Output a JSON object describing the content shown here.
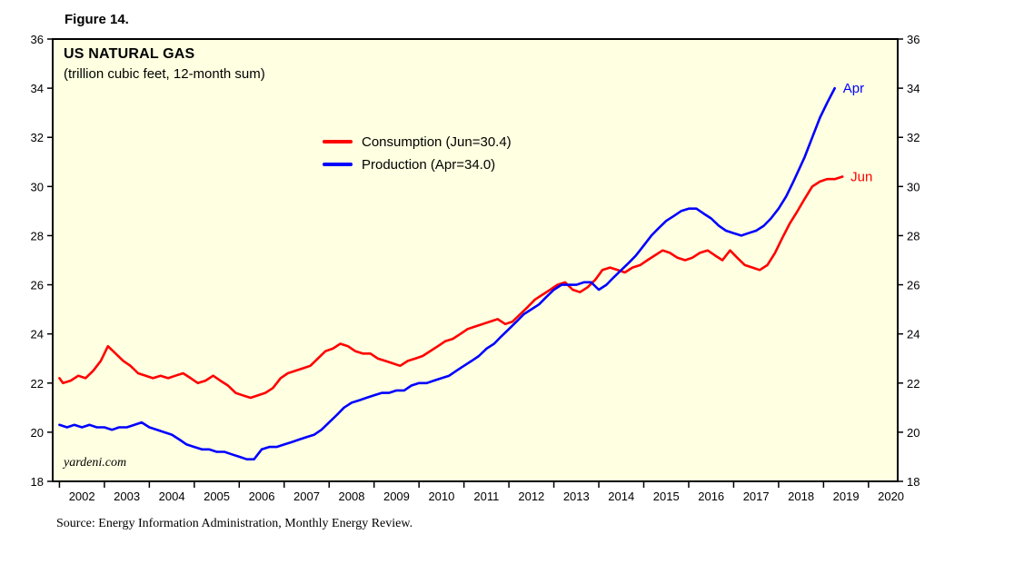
{
  "figure": {
    "label": "Figure 14."
  },
  "chart": {
    "title": "US NATURAL GAS",
    "subtitle": "(trillion cubic feet, 12-month sum)"
  },
  "legend": [
    {
      "label": "Consumption (Jun=30.4)",
      "color": "#FF0000"
    },
    {
      "label": "Production (Apr=34.0)",
      "color": "#0000FF"
    }
  ],
  "watermark": {
    "text": "yardeni.com"
  },
  "footer": {
    "source": "Source: Energy Information Administration, Monthly Energy Review."
  },
  "colors": {
    "plot_bg": "#FFFFE1",
    "frame": "#000000",
    "consumption": "#FF0000",
    "production": "#0000FF"
  },
  "chart_data": {
    "type": "line",
    "title": "US NATURAL GAS",
    "subtitle": "(trillion cubic feet, 12-month sum)",
    "xlabel": "",
    "ylabel": "trillion cubic feet (12-month sum)",
    "ylim": [
      18,
      36
    ],
    "ytick_step": 2,
    "xlim": [
      2001.85,
      2020.65
    ],
    "xticks_years": [
      2002,
      2003,
      2004,
      2005,
      2006,
      2007,
      2008,
      2009,
      2010,
      2011,
      2012,
      2013,
      2014,
      2015,
      2016,
      2017,
      2018,
      2019,
      2020
    ],
    "grid": false,
    "legend_position": "upper-center-left",
    "series": [
      {
        "name": "Consumption (Jun=30.4)",
        "color": "#FF0000",
        "end_label": "Jun",
        "points": [
          [
            2002.0,
            22.2
          ],
          [
            2002.08,
            22.0
          ],
          [
            2002.25,
            22.1
          ],
          [
            2002.42,
            22.3
          ],
          [
            2002.58,
            22.2
          ],
          [
            2002.75,
            22.5
          ],
          [
            2002.92,
            22.9
          ],
          [
            2003.08,
            23.5
          ],
          [
            2003.25,
            23.2
          ],
          [
            2003.42,
            22.9
          ],
          [
            2003.58,
            22.7
          ],
          [
            2003.75,
            22.4
          ],
          [
            2003.92,
            22.3
          ],
          [
            2004.08,
            22.2
          ],
          [
            2004.25,
            22.3
          ],
          [
            2004.42,
            22.2
          ],
          [
            2004.58,
            22.3
          ],
          [
            2004.75,
            22.4
          ],
          [
            2004.92,
            22.2
          ],
          [
            2005.08,
            22.0
          ],
          [
            2005.25,
            22.1
          ],
          [
            2005.42,
            22.3
          ],
          [
            2005.58,
            22.1
          ],
          [
            2005.75,
            21.9
          ],
          [
            2005.92,
            21.6
          ],
          [
            2006.08,
            21.5
          ],
          [
            2006.25,
            21.4
          ],
          [
            2006.42,
            21.5
          ],
          [
            2006.58,
            21.6
          ],
          [
            2006.75,
            21.8
          ],
          [
            2006.92,
            22.2
          ],
          [
            2007.08,
            22.4
          ],
          [
            2007.25,
            22.5
          ],
          [
            2007.42,
            22.6
          ],
          [
            2007.58,
            22.7
          ],
          [
            2007.75,
            23.0
          ],
          [
            2007.92,
            23.3
          ],
          [
            2008.08,
            23.4
          ],
          [
            2008.25,
            23.6
          ],
          [
            2008.42,
            23.5
          ],
          [
            2008.58,
            23.3
          ],
          [
            2008.75,
            23.2
          ],
          [
            2008.92,
            23.2
          ],
          [
            2009.08,
            23.0
          ],
          [
            2009.25,
            22.9
          ],
          [
            2009.42,
            22.8
          ],
          [
            2009.58,
            22.7
          ],
          [
            2009.75,
            22.9
          ],
          [
            2009.92,
            23.0
          ],
          [
            2010.08,
            23.1
          ],
          [
            2010.25,
            23.3
          ],
          [
            2010.42,
            23.5
          ],
          [
            2010.58,
            23.7
          ],
          [
            2010.75,
            23.8
          ],
          [
            2010.92,
            24.0
          ],
          [
            2011.08,
            24.2
          ],
          [
            2011.25,
            24.3
          ],
          [
            2011.42,
            24.4
          ],
          [
            2011.58,
            24.5
          ],
          [
            2011.75,
            24.6
          ],
          [
            2011.92,
            24.4
          ],
          [
            2012.08,
            24.5
          ],
          [
            2012.25,
            24.8
          ],
          [
            2012.42,
            25.1
          ],
          [
            2012.58,
            25.4
          ],
          [
            2012.75,
            25.6
          ],
          [
            2012.92,
            25.8
          ],
          [
            2013.08,
            26.0
          ],
          [
            2013.25,
            26.1
          ],
          [
            2013.42,
            25.8
          ],
          [
            2013.58,
            25.7
          ],
          [
            2013.75,
            25.9
          ],
          [
            2013.92,
            26.2
          ],
          [
            2014.08,
            26.6
          ],
          [
            2014.25,
            26.7
          ],
          [
            2014.42,
            26.6
          ],
          [
            2014.58,
            26.5
          ],
          [
            2014.75,
            26.7
          ],
          [
            2014.92,
            26.8
          ],
          [
            2015.08,
            27.0
          ],
          [
            2015.25,
            27.2
          ],
          [
            2015.42,
            27.4
          ],
          [
            2015.58,
            27.3
          ],
          [
            2015.75,
            27.1
          ],
          [
            2015.92,
            27.0
          ],
          [
            2016.08,
            27.1
          ],
          [
            2016.25,
            27.3
          ],
          [
            2016.42,
            27.4
          ],
          [
            2016.58,
            27.2
          ],
          [
            2016.75,
            27.0
          ],
          [
            2016.92,
            27.4
          ],
          [
            2017.08,
            27.1
          ],
          [
            2017.25,
            26.8
          ],
          [
            2017.42,
            26.7
          ],
          [
            2017.58,
            26.6
          ],
          [
            2017.75,
            26.8
          ],
          [
            2017.92,
            27.3
          ],
          [
            2018.08,
            27.9
          ],
          [
            2018.25,
            28.5
          ],
          [
            2018.42,
            29.0
          ],
          [
            2018.58,
            29.5
          ],
          [
            2018.75,
            30.0
          ],
          [
            2018.92,
            30.2
          ],
          [
            2019.08,
            30.3
          ],
          [
            2019.25,
            30.3
          ],
          [
            2019.42,
            30.4
          ]
        ]
      },
      {
        "name": "Production (Apr=34.0)",
        "color": "#0000FF",
        "end_label": "Apr",
        "points": [
          [
            2002.0,
            20.3
          ],
          [
            2002.17,
            20.2
          ],
          [
            2002.33,
            20.3
          ],
          [
            2002.5,
            20.2
          ],
          [
            2002.67,
            20.3
          ],
          [
            2002.83,
            20.2
          ],
          [
            2003.0,
            20.2
          ],
          [
            2003.17,
            20.1
          ],
          [
            2003.33,
            20.2
          ],
          [
            2003.5,
            20.2
          ],
          [
            2003.67,
            20.3
          ],
          [
            2003.83,
            20.4
          ],
          [
            2004.0,
            20.2
          ],
          [
            2004.17,
            20.1
          ],
          [
            2004.33,
            20.0
          ],
          [
            2004.5,
            19.9
          ],
          [
            2004.67,
            19.7
          ],
          [
            2004.83,
            19.5
          ],
          [
            2005.0,
            19.4
          ],
          [
            2005.17,
            19.3
          ],
          [
            2005.33,
            19.3
          ],
          [
            2005.5,
            19.2
          ],
          [
            2005.67,
            19.2
          ],
          [
            2005.83,
            19.1
          ],
          [
            2006.0,
            19.0
          ],
          [
            2006.17,
            18.9
          ],
          [
            2006.33,
            18.9
          ],
          [
            2006.5,
            19.3
          ],
          [
            2006.67,
            19.4
          ],
          [
            2006.83,
            19.4
          ],
          [
            2007.0,
            19.5
          ],
          [
            2007.17,
            19.6
          ],
          [
            2007.33,
            19.7
          ],
          [
            2007.5,
            19.8
          ],
          [
            2007.67,
            19.9
          ],
          [
            2007.83,
            20.1
          ],
          [
            2008.0,
            20.4
          ],
          [
            2008.17,
            20.7
          ],
          [
            2008.33,
            21.0
          ],
          [
            2008.5,
            21.2
          ],
          [
            2008.67,
            21.3
          ],
          [
            2008.83,
            21.4
          ],
          [
            2009.0,
            21.5
          ],
          [
            2009.17,
            21.6
          ],
          [
            2009.33,
            21.6
          ],
          [
            2009.5,
            21.7
          ],
          [
            2009.67,
            21.7
          ],
          [
            2009.83,
            21.9
          ],
          [
            2010.0,
            22.0
          ],
          [
            2010.17,
            22.0
          ],
          [
            2010.33,
            22.1
          ],
          [
            2010.5,
            22.2
          ],
          [
            2010.67,
            22.3
          ],
          [
            2010.83,
            22.5
          ],
          [
            2011.0,
            22.7
          ],
          [
            2011.17,
            22.9
          ],
          [
            2011.33,
            23.1
          ],
          [
            2011.5,
            23.4
          ],
          [
            2011.67,
            23.6
          ],
          [
            2011.83,
            23.9
          ],
          [
            2012.0,
            24.2
          ],
          [
            2012.17,
            24.5
          ],
          [
            2012.33,
            24.8
          ],
          [
            2012.5,
            25.0
          ],
          [
            2012.67,
            25.2
          ],
          [
            2012.83,
            25.5
          ],
          [
            2013.0,
            25.8
          ],
          [
            2013.17,
            26.0
          ],
          [
            2013.33,
            26.0
          ],
          [
            2013.5,
            26.0
          ],
          [
            2013.67,
            26.1
          ],
          [
            2013.83,
            26.1
          ],
          [
            2014.0,
            25.8
          ],
          [
            2014.17,
            26.0
          ],
          [
            2014.33,
            26.3
          ],
          [
            2014.5,
            26.6
          ],
          [
            2014.67,
            26.9
          ],
          [
            2014.83,
            27.2
          ],
          [
            2015.0,
            27.6
          ],
          [
            2015.17,
            28.0
          ],
          [
            2015.33,
            28.3
          ],
          [
            2015.5,
            28.6
          ],
          [
            2015.67,
            28.8
          ],
          [
            2015.83,
            29.0
          ],
          [
            2016.0,
            29.1
          ],
          [
            2016.17,
            29.1
          ],
          [
            2016.33,
            28.9
          ],
          [
            2016.5,
            28.7
          ],
          [
            2016.67,
            28.4
          ],
          [
            2016.83,
            28.2
          ],
          [
            2017.0,
            28.1
          ],
          [
            2017.17,
            28.0
          ],
          [
            2017.33,
            28.1
          ],
          [
            2017.5,
            28.2
          ],
          [
            2017.67,
            28.4
          ],
          [
            2017.83,
            28.7
          ],
          [
            2018.0,
            29.1
          ],
          [
            2018.17,
            29.6
          ],
          [
            2018.33,
            30.2
          ],
          [
            2018.58,
            31.2
          ],
          [
            2018.75,
            32.0
          ],
          [
            2018.92,
            32.8
          ],
          [
            2019.08,
            33.4
          ],
          [
            2019.25,
            34.0
          ]
        ]
      }
    ]
  }
}
